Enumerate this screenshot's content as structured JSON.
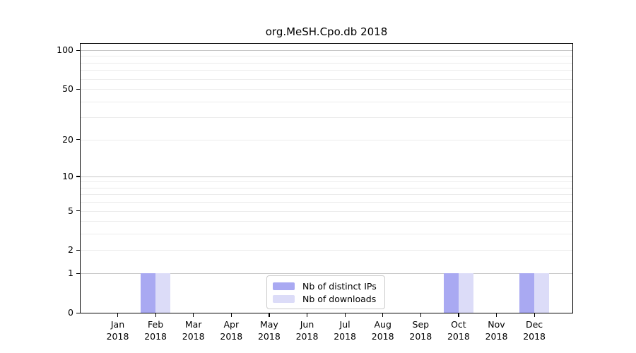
{
  "chart_data": {
    "type": "bar",
    "title": "org.MeSH.Cpo.db 2018",
    "categories": [
      "Jan",
      "Feb",
      "Mar",
      "Apr",
      "May",
      "Jun",
      "Jul",
      "Aug",
      "Sep",
      "Oct",
      "Nov",
      "Dec"
    ],
    "category_year": "2018",
    "series": [
      {
        "name": "Nb of distinct IPs",
        "color": "#a9a9f2",
        "values": [
          0,
          1,
          0,
          0,
          0,
          0,
          0,
          0,
          0,
          1,
          0,
          1
        ]
      },
      {
        "name": "Nb of downloads",
        "color": "#dcdcf8",
        "values": [
          0,
          1,
          0,
          0,
          0,
          0,
          0,
          0,
          0,
          1,
          0,
          1
        ]
      }
    ],
    "y_axis": {
      "scale": "log10(1+y)",
      "tick_values": [
        0,
        1,
        2,
        5,
        10,
        20,
        50,
        100
      ],
      "major_gridlines": [
        1,
        10,
        100
      ],
      "minor_gridlines": [
        2,
        3,
        4,
        5,
        6,
        7,
        8,
        9,
        20,
        30,
        40,
        50,
        60,
        70,
        80,
        90
      ],
      "ylim": [
        0,
        112
      ]
    },
    "legend": {
      "position": "bottom-center",
      "entries": [
        "Nb of distinct IPs",
        "Nb of downloads"
      ]
    },
    "colors": {
      "major_grid": "#c6c6c6",
      "minor_grid": "#ececec",
      "axis": "#000000",
      "legend_border": "#cccccc"
    },
    "grid": "on"
  }
}
